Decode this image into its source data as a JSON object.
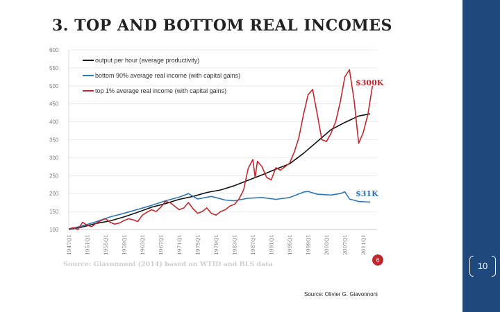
{
  "slide": {
    "footer_text": "Source: Olivier G. Giavonnoni",
    "page_number": "10",
    "colors": {
      "sidebar": "#1f497d",
      "background": "#ffffff"
    }
  },
  "chart_data": {
    "type": "line",
    "title": "3. TOP AND BOTTOM REAL INCOMES",
    "source": "Source: Giavonnoni (2014) based on WTID and BLS data",
    "badge": "6",
    "ylim": [
      100,
      600
    ],
    "yticks": [
      "600",
      "550",
      "500",
      "450",
      "400",
      "350",
      "300",
      "250",
      "200",
      "150",
      "100"
    ],
    "xlim": [
      1947,
      2014
    ],
    "xticks": [
      "1947Q1",
      "1951Q1",
      "1955Q1",
      "1959Q1",
      "1963Q1",
      "1967Q1",
      "1971Q1",
      "1975Q1",
      "1979Q1",
      "1983Q1",
      "1987Q1",
      "1991Q1",
      "1995Q1",
      "1999Q1",
      "2003Q1",
      "2007Q1",
      "2011Q1"
    ],
    "legend_position": "top-left",
    "annotations": [
      {
        "text": "$300K",
        "x": 2011,
        "y": 509,
        "color": "#c0282d"
      },
      {
        "text": "$31K",
        "x": 2011,
        "y": 200,
        "color": "#2e75b6"
      }
    ],
    "series": [
      {
        "name": "output per hour (average productivity)",
        "color": "#111111",
        "x": [
          1947,
          1950,
          1953,
          1956,
          1959,
          1962,
          1965,
          1968,
          1971,
          1974,
          1977,
          1980,
          1983,
          1986,
          1989,
          1992,
          1995,
          1998,
          2001,
          2004,
          2007,
          2010,
          2012.5
        ],
        "y": [
          100,
          107,
          117,
          124,
          135,
          148,
          162,
          172,
          184,
          192,
          203,
          210,
          222,
          237,
          252,
          268,
          283,
          312,
          345,
          378,
          398,
          416,
          422
        ]
      },
      {
        "name": "bottom 90% average real income (with capital gains)",
        "color": "#2e75b6",
        "x": [
          1947,
          1950,
          1953,
          1956,
          1959,
          1962,
          1965,
          1968,
          1971,
          1973,
          1975,
          1978,
          1981,
          1983,
          1986,
          1989,
          1992,
          1995,
          1998,
          1999,
          2001,
          2004,
          2006,
          2007,
          2008,
          2010,
          2012.5
        ],
        "y": [
          101,
          110,
          122,
          135,
          145,
          156,
          167,
          180,
          190,
          200,
          185,
          192,
          182,
          180,
          187,
          189,
          184,
          189,
          204,
          206,
          198,
          196,
          200,
          205,
          185,
          178,
          176
        ]
      },
      {
        "name": "top 1% average real income (with capital gains)",
        "color": "#c0282d",
        "x": [
          1947,
          1948,
          1949,
          1950,
          1951,
          1952,
          1953,
          1954,
          1955,
          1956,
          1957,
          1958,
          1959,
          1960,
          1961,
          1962,
          1963,
          1964,
          1965,
          1966,
          1967,
          1968,
          1969,
          1970,
          1971,
          1972,
          1973,
          1974,
          1975,
          1976,
          1977,
          1978,
          1979,
          1980,
          1981,
          1982,
          1983,
          1984,
          1985,
          1986,
          1987,
          1987.5,
          1988,
          1989,
          1990,
          1991,
          1992,
          1993,
          1994,
          1995,
          1996,
          1997,
          1998,
          1999,
          2000,
          2001,
          2002,
          2003,
          2004,
          2005,
          2006,
          2007,
          2008,
          2009,
          2010,
          2011,
          2012,
          2013
        ],
        "y": [
          102,
          105,
          100,
          120,
          112,
          108,
          118,
          125,
          130,
          120,
          115,
          118,
          125,
          130,
          127,
          122,
          140,
          148,
          155,
          150,
          162,
          178,
          175,
          165,
          155,
          160,
          175,
          158,
          145,
          150,
          160,
          145,
          140,
          150,
          155,
          165,
          170,
          185,
          210,
          270,
          295,
          245,
          290,
          275,
          245,
          238,
          272,
          265,
          275,
          285,
          315,
          355,
          420,
          475,
          490,
          420,
          350,
          345,
          368,
          400,
          455,
          525,
          545,
          460,
          340,
          370,
          420,
          500
        ]
      }
    ]
  }
}
